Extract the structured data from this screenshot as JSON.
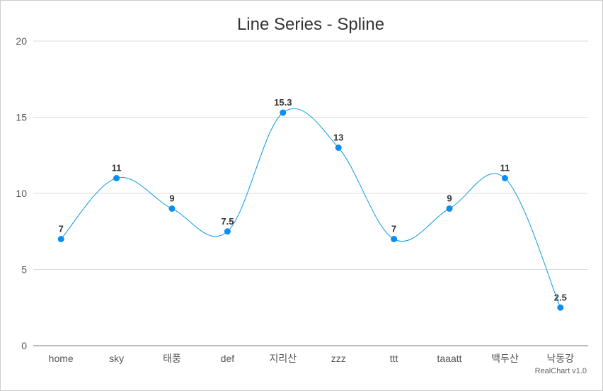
{
  "chart_data": {
    "type": "line",
    "subtype": "spline",
    "title": "Line Series - Spline",
    "categories": [
      "home",
      "sky",
      "태풍",
      "def",
      "지리산",
      "zzz",
      "ttt",
      "taaatt",
      "백두산",
      "낙동강"
    ],
    "series": [
      {
        "values": [
          7,
          11,
          9,
          7.5,
          15.3,
          13,
          7,
          9,
          11,
          2.5
        ]
      }
    ],
    "data_labels": [
      "7",
      "11",
      "9",
      "7.5",
      "15.3",
      "13",
      "7",
      "9",
      "11",
      "2.5"
    ],
    "ylim": [
      0,
      20
    ],
    "yticks": [
      0,
      5,
      10,
      15,
      20
    ],
    "grid": true,
    "legend": "none",
    "colors": {
      "line": "#0b9ae0",
      "point": "#0b8ef0",
      "grid": "#dddddd",
      "axis": "#bbbbbb"
    }
  },
  "credit": "RealChart v1.0"
}
